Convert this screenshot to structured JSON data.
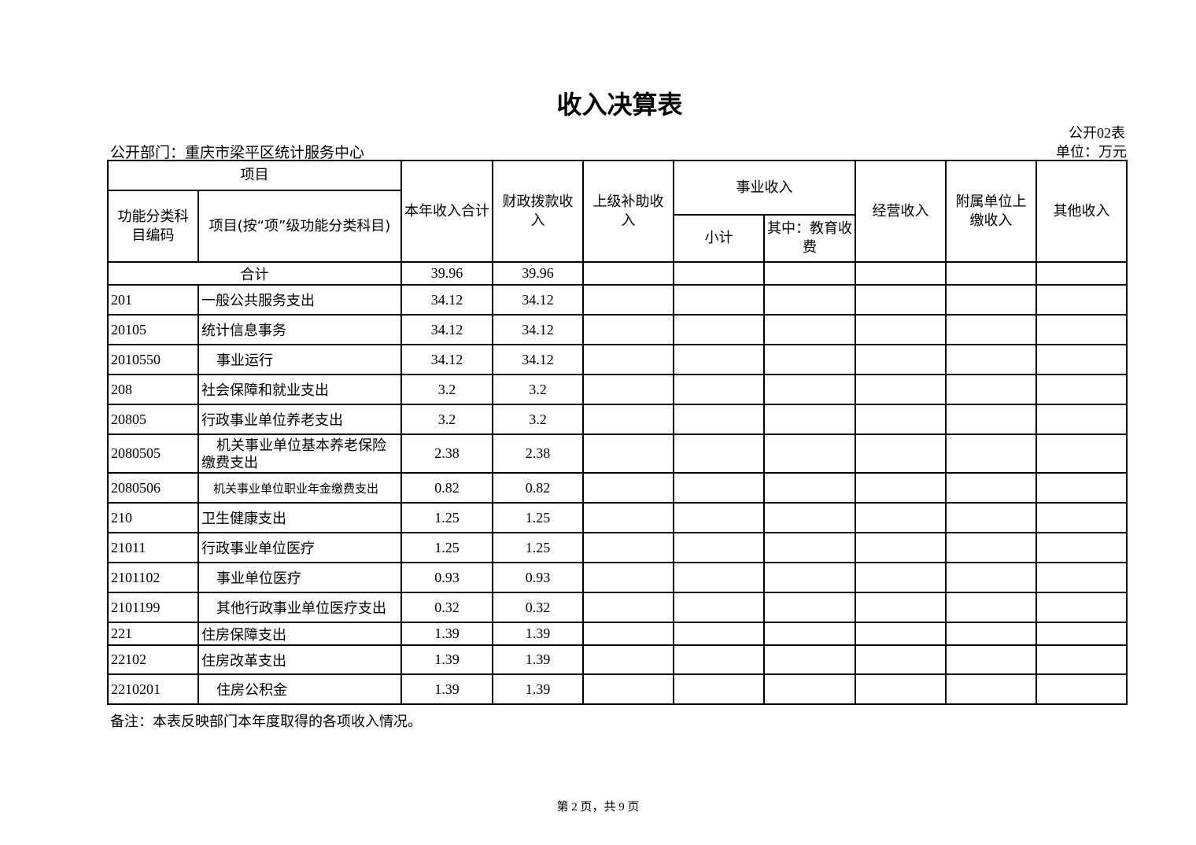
{
  "title": "收入决算表",
  "form_no": "公开02表",
  "department": "公开部门：重庆市梁平区统计服务中心",
  "unit": "单位：万元",
  "headers": {
    "item": "项目",
    "code": "功能分类科目编码",
    "name": "项目(按“项”级功能分类科目)",
    "total": "本年收入合计",
    "fiscal": "财政拨款收入",
    "superior": "上级补助收入",
    "business": "事业收入",
    "subtotal": "小计",
    "education": "其中：教育收费",
    "operating": "经营收入",
    "affiliated": "附属单位上缴收入",
    "other": "其他收入"
  },
  "total_row": {
    "label": "合计",
    "total": "39.96",
    "fiscal": "39.96"
  },
  "rows": [
    {
      "code": "201",
      "name": "一般公共服务支出",
      "total": "34.12",
      "fiscal": "34.12"
    },
    {
      "code": "20105",
      "name": "统计信息事务",
      "total": "34.12",
      "fiscal": "34.12"
    },
    {
      "code": "2010550",
      "name": "事业运行",
      "total": "34.12",
      "fiscal": "34.12"
    },
    {
      "code": "208",
      "name": "社会保障和就业支出",
      "total": "3.2",
      "fiscal": "3.2"
    },
    {
      "code": "20805",
      "name": "行政事业单位养老支出",
      "total": "3.2",
      "fiscal": "3.2"
    },
    {
      "code": "2080505",
      "name": "机关事业单位基本养老保险缴费支出",
      "total": "2.38",
      "fiscal": "2.38"
    },
    {
      "code": "2080506",
      "name": "机关事业单位职业年金缴费支出",
      "total": "0.82",
      "fiscal": "0.82"
    },
    {
      "code": "210",
      "name": "卫生健康支出",
      "total": "1.25",
      "fiscal": "1.25"
    },
    {
      "code": "21011",
      "name": "行政事业单位医疗",
      "total": "1.25",
      "fiscal": "1.25"
    },
    {
      "code": "2101102",
      "name": "事业单位医疗",
      "total": "0.93",
      "fiscal": "0.93"
    },
    {
      "code": "2101199",
      "name": "其他行政事业单位医疗支出",
      "total": "0.32",
      "fiscal": "0.32"
    },
    {
      "code": "221",
      "name": "住房保障支出",
      "total": "1.39",
      "fiscal": "1.39"
    },
    {
      "code": "22102",
      "name": "住房改革支出",
      "total": "1.39",
      "fiscal": "1.39"
    },
    {
      "code": "2210201",
      "name": "住房公积金",
      "total": "1.39",
      "fiscal": "1.39"
    }
  ],
  "note": "备注：本表反映部门本年度取得的各项收入情况。",
  "footer": "第 2 页，共 9 页"
}
